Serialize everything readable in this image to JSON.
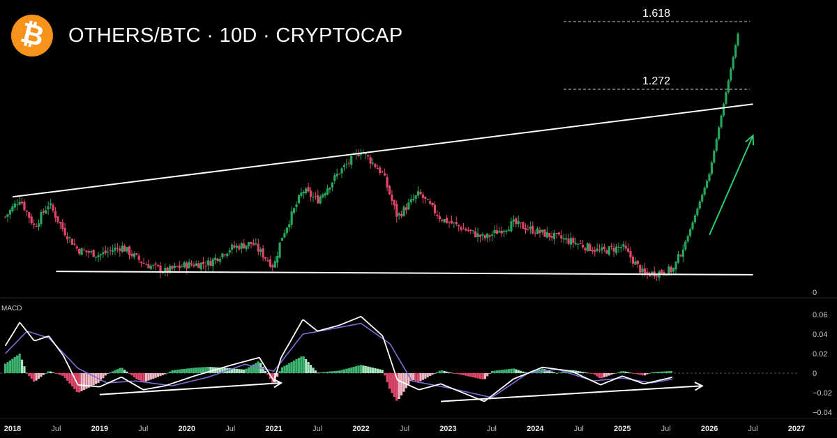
{
  "header": {
    "logo_icon": "bitcoin-icon",
    "logo_color": "#f7931a",
    "title": "OTHERS/BTC · 10D · CRYPTOCAP"
  },
  "chart_data": [
    {
      "type": "candlestick",
      "title": "OTHERS/BTC · 10D · CRYPTOCAP",
      "y_axis_labels": [
        "0"
      ],
      "fib_levels": [
        {
          "label": "1.618",
          "value": 1.618
        },
        {
          "label": "1.272",
          "value": 1.272
        }
      ],
      "colors": {
        "up": "#26a65b",
        "down": "#e0456a",
        "trendline": "#ffffff",
        "arrow": "#2ecc71"
      },
      "annotations": [
        "upper trendline (2018 → 2026)",
        "lower trendline (2018 → 2026)",
        "green projection arrow"
      ],
      "keypoints": [
        {
          "date": "2017-12",
          "close": 46
        },
        {
          "date": "2018-02",
          "close": 57
        },
        {
          "date": "2018-04",
          "close": 40
        },
        {
          "date": "2018-06",
          "close": 54
        },
        {
          "date": "2018-08",
          "close": 38
        },
        {
          "date": "2018-10",
          "close": 26
        },
        {
          "date": "2019-01",
          "close": 23
        },
        {
          "date": "2019-04",
          "close": 28
        },
        {
          "date": "2019-07",
          "close": 18
        },
        {
          "date": "2019-10",
          "close": 13
        },
        {
          "date": "2020-01",
          "close": 17
        },
        {
          "date": "2020-04",
          "close": 18
        },
        {
          "date": "2020-07",
          "close": 27
        },
        {
          "date": "2020-10",
          "close": 30
        },
        {
          "date": "2021-01",
          "close": 16
        },
        {
          "date": "2021-02",
          "close": 33
        },
        {
          "date": "2021-05",
          "close": 62
        },
        {
          "date": "2021-07",
          "close": 56
        },
        {
          "date": "2021-10",
          "close": 73
        },
        {
          "date": "2022-01",
          "close": 86
        },
        {
          "date": "2022-04",
          "close": 72
        },
        {
          "date": "2022-06",
          "close": 46
        },
        {
          "date": "2022-09",
          "close": 60
        },
        {
          "date": "2022-12",
          "close": 45
        },
        {
          "date": "2023-06",
          "close": 33
        },
        {
          "date": "2023-10",
          "close": 42
        },
        {
          "date": "2024-02",
          "close": 36
        },
        {
          "date": "2024-06",
          "close": 31
        },
        {
          "date": "2024-10",
          "close": 25
        },
        {
          "date": "2025-01",
          "close": 28
        },
        {
          "date": "2025-04",
          "close": 11
        },
        {
          "date": "2025-08",
          "close": 14
        },
        {
          "date": "2025-10",
          "close": 34
        },
        {
          "date": "2026-01",
          "close": 72
        },
        {
          "date": "2026-03",
          "close": 115
        },
        {
          "date": "2026-05",
          "close": 158
        }
      ],
      "upper_trendline": [
        {
          "date": "2018-01",
          "value": 58
        },
        {
          "date": "2026-07",
          "value": 114
        }
      ],
      "lower_trendline": [
        {
          "date": "2018-07",
          "value": 13
        },
        {
          "date": "2026-07",
          "value": 11
        }
      ],
      "projection_arrow": [
        {
          "date": "2026-01",
          "value": 35
        },
        {
          "date": "2026-07",
          "value": 95
        }
      ]
    },
    {
      "type": "line",
      "title": "MACD",
      "yticks": [
        0.06,
        0.04,
        0.02,
        0,
        -0.02,
        -0.04
      ],
      "tick_labels": [
        "0.06",
        "0.04",
        "0.02",
        "0",
        "−0.02",
        "−0.04"
      ],
      "ylim": [
        -0.045,
        0.065
      ],
      "colors": {
        "macd": "#ffffff",
        "signal": "#7b6fd6",
        "hist_up": "#3cb371",
        "hist_down": "#e0456a"
      },
      "macd_keypoints": [
        {
          "date": "2017-12",
          "value": 0.028
        },
        {
          "date": "2018-02",
          "value": 0.052
        },
        {
          "date": "2018-04",
          "value": 0.033
        },
        {
          "date": "2018-06",
          "value": 0.038
        },
        {
          "date": "2018-08",
          "value": 0.018
        },
        {
          "date": "2018-10",
          "value": -0.012
        },
        {
          "date": "2019-01",
          "value": -0.014
        },
        {
          "date": "2019-04",
          "value": -0.004
        },
        {
          "date": "2019-07",
          "value": -0.017
        },
        {
          "date": "2019-10",
          "value": -0.013
        },
        {
          "date": "2020-02",
          "value": -0.003
        },
        {
          "date": "2020-07",
          "value": 0.008
        },
        {
          "date": "2020-11",
          "value": 0.016
        },
        {
          "date": "2021-01",
          "value": -0.008
        },
        {
          "date": "2021-02",
          "value": 0.016
        },
        {
          "date": "2021-05",
          "value": 0.055
        },
        {
          "date": "2021-07",
          "value": 0.043
        },
        {
          "date": "2021-10",
          "value": 0.049
        },
        {
          "date": "2022-01",
          "value": 0.058
        },
        {
          "date": "2022-04",
          "value": 0.038
        },
        {
          "date": "2022-06",
          "value": -0.007
        },
        {
          "date": "2022-09",
          "value": -0.017
        },
        {
          "date": "2022-12",
          "value": -0.011
        },
        {
          "date": "2023-03",
          "value": -0.02
        },
        {
          "date": "2023-06",
          "value": -0.029
        },
        {
          "date": "2023-10",
          "value": -0.006
        },
        {
          "date": "2024-02",
          "value": 0.006
        },
        {
          "date": "2024-06",
          "value": 0.002
        },
        {
          "date": "2024-10",
          "value": -0.012
        },
        {
          "date": "2025-01",
          "value": -0.003
        },
        {
          "date": "2025-04",
          "value": -0.011
        },
        {
          "date": "2025-08",
          "value": -0.004
        }
      ],
      "signal_keypoints": [
        {
          "date": "2017-12",
          "value": 0.02
        },
        {
          "date": "2018-03",
          "value": 0.043
        },
        {
          "date": "2018-06",
          "value": 0.036
        },
        {
          "date": "2018-10",
          "value": 0.005
        },
        {
          "date": "2019-02",
          "value": -0.01
        },
        {
          "date": "2019-06",
          "value": -0.008
        },
        {
          "date": "2019-11",
          "value": -0.013
        },
        {
          "date": "2020-04",
          "value": -0.004
        },
        {
          "date": "2020-09",
          "value": 0.009
        },
        {
          "date": "2021-01",
          "value": 0.002
        },
        {
          "date": "2021-05",
          "value": 0.04
        },
        {
          "date": "2021-08",
          "value": 0.044
        },
        {
          "date": "2022-01",
          "value": 0.051
        },
        {
          "date": "2022-05",
          "value": 0.03
        },
        {
          "date": "2022-08",
          "value": -0.008
        },
        {
          "date": "2023-01",
          "value": -0.015
        },
        {
          "date": "2023-07",
          "value": -0.025
        },
        {
          "date": "2023-12",
          "value": 0.0
        },
        {
          "date": "2024-04",
          "value": 0.004
        },
        {
          "date": "2024-09",
          "value": -0.008
        },
        {
          "date": "2025-01",
          "value": -0.005
        },
        {
          "date": "2025-05",
          "value": -0.01
        },
        {
          "date": "2025-08",
          "value": -0.006
        }
      ],
      "divergence_arrows": [
        {
          "from": {
            "date": "2019-01",
            "value": -0.022
          },
          "to": {
            "date": "2021-02",
            "value": -0.01
          }
        },
        {
          "from": {
            "date": "2022-12",
            "value": -0.029
          },
          "to": {
            "date": "2025-12",
            "value": -0.013
          }
        }
      ]
    }
  ],
  "x_axis": {
    "ticks": [
      {
        "label": "2018",
        "date": "2018-01",
        "bold": true
      },
      {
        "label": "Jul",
        "date": "2018-07",
        "bold": false
      },
      {
        "label": "2019",
        "date": "2019-01",
        "bold": true
      },
      {
        "label": "Jul",
        "date": "2019-07",
        "bold": false
      },
      {
        "label": "2020",
        "date": "2020-01",
        "bold": true
      },
      {
        "label": "Jul",
        "date": "2020-07",
        "bold": false
      },
      {
        "label": "2021",
        "date": "2021-01",
        "bold": true
      },
      {
        "label": "Jul",
        "date": "2021-07",
        "bold": false
      },
      {
        "label": "2022",
        "date": "2022-01",
        "bold": true
      },
      {
        "label": "Jul",
        "date": "2022-07",
        "bold": false
      },
      {
        "label": "2023",
        "date": "2023-01",
        "bold": true
      },
      {
        "label": "Jul",
        "date": "2023-07",
        "bold": false
      },
      {
        "label": "2024",
        "date": "2024-01",
        "bold": true
      },
      {
        "label": "Jul",
        "date": "2024-07",
        "bold": false
      },
      {
        "label": "2025",
        "date": "2025-01",
        "bold": true
      },
      {
        "label": "Jul",
        "date": "2025-07",
        "bold": false
      },
      {
        "label": "2026",
        "date": "2026-01",
        "bold": true
      },
      {
        "label": "Jul",
        "date": "2026-07",
        "bold": false
      },
      {
        "label": "2027",
        "date": "2027-01",
        "bold": true
      }
    ]
  }
}
